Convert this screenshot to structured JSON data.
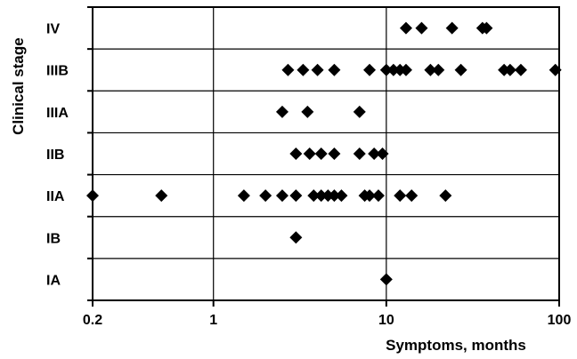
{
  "chart_data": {
    "type": "scatter",
    "title": "",
    "xlabel": "Symptoms, months",
    "ylabel": "Clinical stage",
    "x_scale": "log",
    "xlim": [
      0.2,
      100
    ],
    "x_ticks": [
      0.2,
      1,
      10,
      100
    ],
    "x_tick_labels": [
      "0.2",
      "1",
      "10",
      "100"
    ],
    "categories": [
      "IA",
      "IB",
      "IIA",
      "IIB",
      "IIIA",
      "IIIB",
      "IV"
    ],
    "grid": true,
    "marker": "diamond",
    "color": "#000000",
    "series": [
      {
        "category": "IV",
        "values": [
          13,
          16,
          24,
          36,
          38
        ]
      },
      {
        "category": "IIIB",
        "values": [
          2.7,
          3.3,
          4,
          5,
          8,
          10,
          11,
          12,
          13,
          18,
          20,
          27,
          48,
          52,
          60,
          95
        ]
      },
      {
        "category": "IIIA",
        "values": [
          2.5,
          3.5,
          7
        ]
      },
      {
        "category": "IIB",
        "values": [
          3,
          3.6,
          4.2,
          5,
          7,
          8.5,
          9.5
        ]
      },
      {
        "category": "IIA",
        "values": [
          0.2,
          0.5,
          1.5,
          2,
          2.5,
          3,
          3.8,
          4.2,
          4.6,
          5,
          5.5,
          7.5,
          8,
          9,
          12,
          14,
          22
        ]
      },
      {
        "category": "IB",
        "values": [
          3
        ]
      },
      {
        "category": "IA",
        "values": [
          10
        ]
      }
    ]
  }
}
